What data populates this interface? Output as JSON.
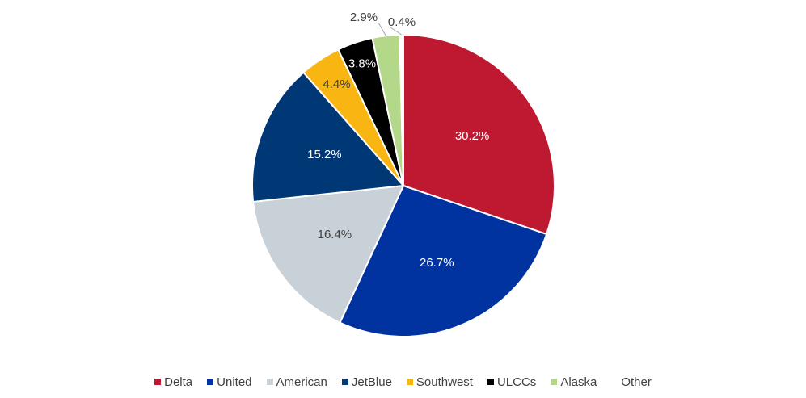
{
  "chart_data": {
    "type": "pie",
    "title": "",
    "slices": [
      {
        "label": "Delta",
        "value": 30.2,
        "text": "30.2%",
        "color": "#BE1931",
        "label_color": "#ffffff"
      },
      {
        "label": "United",
        "value": 26.7,
        "text": "26.7%",
        "color": "#0033A0",
        "label_color": "#ffffff"
      },
      {
        "label": "American",
        "value": 16.4,
        "text": "16.4%",
        "color": "#C8D0D8",
        "label_color": "#404040"
      },
      {
        "label": "JetBlue",
        "value": 15.2,
        "text": "15.2%",
        "color": "#003876",
        "label_color": "#ffffff"
      },
      {
        "label": "Southwest",
        "value": 4.4,
        "text": "4.4%",
        "color": "#F9B612",
        "label_color": "#404040"
      },
      {
        "label": "ULCCs",
        "value": 3.8,
        "text": "3.8%",
        "color": "#000000",
        "label_color": "#ffffff"
      },
      {
        "label": "Alaska",
        "value": 2.9,
        "text": "2.9%",
        "color": "#B3D88A",
        "label_color": "#404040"
      },
      {
        "label": "Other",
        "value": 0.4,
        "text": "0.4%",
        "color": "#ffffff",
        "label_color": "#404040"
      }
    ],
    "legend": "bottom"
  }
}
